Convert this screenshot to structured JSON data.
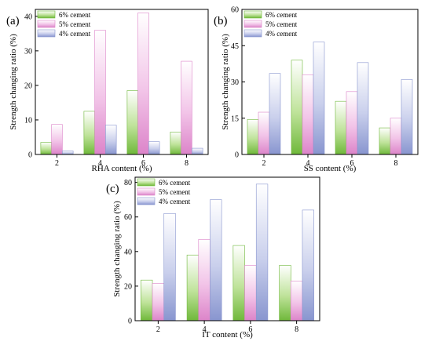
{
  "colors": {
    "6% cement": "#7fc443",
    "5% cement": "#e69ad6",
    "4% cement": "#9aa6d9",
    "axis": "#000000"
  },
  "chart_data": [
    {
      "panel_label": "(a)",
      "type": "bar",
      "categories": [
        "2",
        "4",
        "6",
        "8"
      ],
      "series": [
        {
          "name": "6% cement",
          "values": [
            3.5,
            12.5,
            18.5,
            6.5
          ]
        },
        {
          "name": "5% cement",
          "values": [
            8.7,
            36.0,
            41.0,
            27.0
          ]
        },
        {
          "name": "4% cement",
          "values": [
            1.0,
            8.5,
            3.7,
            1.8
          ]
        }
      ],
      "xlabel": "RHA content (%)",
      "ylabel": "Strength changing ratio (%)",
      "ylim": [
        0,
        42
      ],
      "yticks": [
        0,
        10,
        20,
        30,
        40
      ],
      "legend": "top-left",
      "grid": false
    },
    {
      "panel_label": "(b)",
      "type": "bar",
      "categories": [
        "2",
        "4",
        "6",
        "8"
      ],
      "series": [
        {
          "name": "6% cement",
          "values": [
            14.5,
            39.0,
            22.0,
            11.0
          ]
        },
        {
          "name": "5% cement",
          "values": [
            17.5,
            33.0,
            26.0,
            15.0
          ]
        },
        {
          "name": "4% cement",
          "values": [
            33.5,
            46.5,
            38.0,
            31.0
          ]
        }
      ],
      "xlabel": "SS content (%)",
      "ylabel": "Strength changing ratio (%)",
      "ylim": [
        0,
        60
      ],
      "yticks": [
        0,
        15,
        30,
        45,
        60
      ],
      "legend": "top-left",
      "grid": false
    },
    {
      "panel_label": "(c)",
      "type": "bar",
      "categories": [
        "2",
        "4",
        "6",
        "8"
      ],
      "series": [
        {
          "name": "6% cement",
          "values": [
            23.5,
            38.0,
            43.5,
            32.0
          ]
        },
        {
          "name": "5% cement",
          "values": [
            21.5,
            47.0,
            32.0,
            23.0
          ]
        },
        {
          "name": "4% cement",
          "values": [
            62.0,
            70.0,
            79.0,
            64.0
          ]
        }
      ],
      "xlabel": "IT content (%)",
      "ylabel": "Strength changing ratio (%)",
      "ylim": [
        0,
        83
      ],
      "yticks": [
        0,
        20,
        40,
        60,
        80
      ],
      "legend": "top-left",
      "grid": false
    }
  ]
}
